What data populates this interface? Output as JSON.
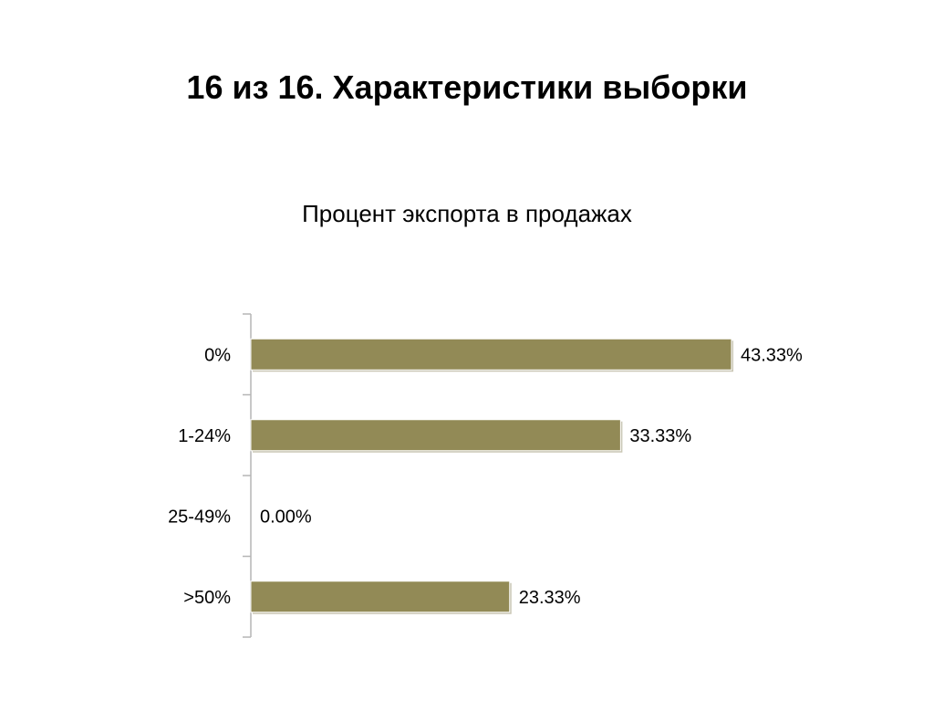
{
  "slide": {
    "title": "16 из 16. Характеристики выборки"
  },
  "colors": {
    "bar": "#928a56",
    "bar_shadow": "#c9c6b4",
    "axis": "#b5b5b5"
  },
  "chart_data": {
    "type": "bar",
    "orientation": "horizontal",
    "title": "Процент экспорта в продажах",
    "categories": [
      "0%",
      "1-24%",
      "25-49%",
      ">50%"
    ],
    "values": [
      43.33,
      33.33,
      0.0,
      23.33
    ],
    "value_labels": [
      "43.33%",
      "33.33%",
      "0.00%",
      "23.33%"
    ],
    "xlim": [
      0,
      50
    ],
    "grid": false,
    "legend": "none"
  }
}
